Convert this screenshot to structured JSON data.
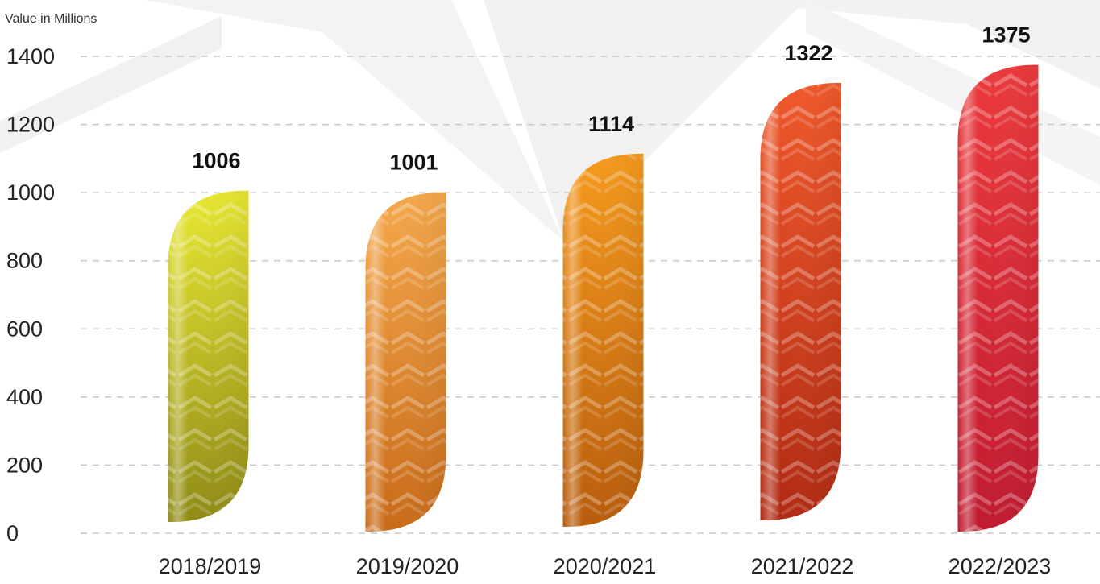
{
  "chart_data": {
    "type": "bar",
    "ylabel": "Value in Millions",
    "categories": [
      "2018/2019",
      "2019/2020",
      "2020/2021",
      "2021/2022",
      "2022/2023"
    ],
    "values": [
      1006,
      1001,
      1114,
      1322,
      1375
    ],
    "data_labels": [
      "1006",
      "1001",
      "1114",
      "1322",
      "1375"
    ],
    "yticks": [
      "0",
      "200",
      "400",
      "600",
      "800",
      "1000",
      "1200",
      "1400"
    ],
    "ylim": [
      0,
      1400
    ],
    "grid": true,
    "bar_colors": [
      {
        "top": "#e8e832",
        "bottom": "#8f8a16"
      },
      {
        "top": "#f5a84a",
        "bottom": "#c86a18"
      },
      {
        "top": "#f59a1c",
        "bottom": "#b85c0c"
      },
      {
        "top": "#f0582a",
        "bottom": "#b02a12"
      },
      {
        "top": "#ec3a3c",
        "bottom": "#c01a30"
      }
    ]
  }
}
